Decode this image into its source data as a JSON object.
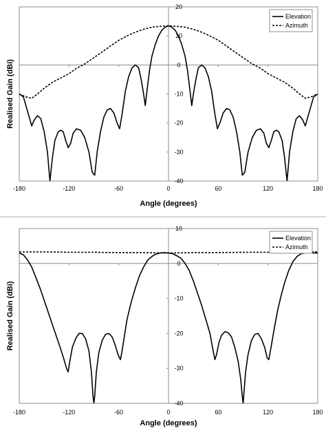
{
  "chart_data": [
    {
      "type": "line",
      "xlabel": "Angle (degrees)",
      "ylabel": "Realised Gain (dBi)",
      "xlim": [
        -180,
        180
      ],
      "ylim": [
        -40,
        20
      ],
      "x_ticks": [
        -180,
        -120,
        -60,
        0,
        60,
        120,
        180
      ],
      "y_ticks": [
        -40,
        -30,
        -20,
        -10,
        0,
        10,
        20
      ],
      "legend_position": "top-right",
      "grid": false,
      "series": [
        {
          "name": "Elevation",
          "style": "solid",
          "color": "#000000",
          "points": [
            [
              -180,
              -10
            ],
            [
              -175,
              -11
            ],
            [
              -170,
              -16
            ],
            [
              -165,
              -21
            ],
            [
              -162,
              -19
            ],
            [
              -158,
              -17.5
            ],
            [
              -154,
              -18.5
            ],
            [
              -150,
              -23
            ],
            [
              -146,
              -30
            ],
            [
              -143,
              -40
            ],
            [
              -140,
              -32
            ],
            [
              -137,
              -26
            ],
            [
              -133,
              -23
            ],
            [
              -130,
              -22.5
            ],
            [
              -127,
              -23
            ],
            [
              -124,
              -26
            ],
            [
              -121,
              -28.5
            ],
            [
              -118,
              -27
            ],
            [
              -115,
              -23.5
            ],
            [
              -111,
              -22
            ],
            [
              -106,
              -22.5
            ],
            [
              -101,
              -25
            ],
            [
              -96,
              -30
            ],
            [
              -92,
              -37
            ],
            [
              -89,
              -38
            ],
            [
              -86,
              -30
            ],
            [
              -82,
              -23
            ],
            [
              -78,
              -18
            ],
            [
              -74,
              -15.5
            ],
            [
              -70,
              -15
            ],
            [
              -66,
              -16.5
            ],
            [
              -62,
              -20
            ],
            [
              -59,
              -22
            ],
            [
              -56,
              -17
            ],
            [
              -52,
              -9
            ],
            [
              -48,
              -4
            ],
            [
              -44,
              -1
            ],
            [
              -40,
              0
            ],
            [
              -36,
              -1
            ],
            [
              -33,
              -5
            ],
            [
              -30,
              -10
            ],
            [
              -28,
              -14
            ],
            [
              -26,
              -9
            ],
            [
              -23,
              -2
            ],
            [
              -20,
              3
            ],
            [
              -16,
              7
            ],
            [
              -12,
              10
            ],
            [
              -8,
              12
            ],
            [
              -4,
              13
            ],
            [
              0,
              13.5
            ],
            [
              4,
              13
            ],
            [
              8,
              12
            ],
            [
              12,
              10
            ],
            [
              16,
              7
            ],
            [
              20,
              3
            ],
            [
              23,
              -2
            ],
            [
              26,
              -9
            ],
            [
              28,
              -14
            ],
            [
              30,
              -10
            ],
            [
              33,
              -5
            ],
            [
              36,
              -1
            ],
            [
              40,
              0
            ],
            [
              44,
              -1
            ],
            [
              48,
              -4
            ],
            [
              52,
              -9
            ],
            [
              56,
              -17
            ],
            [
              59,
              -22
            ],
            [
              62,
              -20
            ],
            [
              66,
              -16.5
            ],
            [
              70,
              -15
            ],
            [
              74,
              -15.5
            ],
            [
              78,
              -18
            ],
            [
              82,
              -23
            ],
            [
              86,
              -30
            ],
            [
              89,
              -38
            ],
            [
              92,
              -37
            ],
            [
              96,
              -30
            ],
            [
              101,
              -25
            ],
            [
              106,
              -22.5
            ],
            [
              111,
              -22
            ],
            [
              115,
              -23.5
            ],
            [
              118,
              -27
            ],
            [
              121,
              -28.5
            ],
            [
              124,
              -26
            ],
            [
              127,
              -23
            ],
            [
              130,
              -22.5
            ],
            [
              133,
              -23
            ],
            [
              137,
              -26
            ],
            [
              140,
              -32
            ],
            [
              143,
              -40
            ],
            [
              146,
              -30
            ],
            [
              150,
              -23
            ],
            [
              154,
              -18.5
            ],
            [
              158,
              -17.5
            ],
            [
              162,
              -19
            ],
            [
              165,
              -21
            ],
            [
              170,
              -16
            ],
            [
              175,
              -11
            ],
            [
              180,
              -10
            ]
          ]
        },
        {
          "name": "Azimuth",
          "style": "dashed",
          "color": "#000000",
          "points": [
            [
              -180,
              -10
            ],
            [
              -172,
              -11
            ],
            [
              -165,
              -11.5
            ],
            [
              -158,
              -10
            ],
            [
              -150,
              -8
            ],
            [
              -140,
              -6
            ],
            [
              -130,
              -4.5
            ],
            [
              -120,
              -3
            ],
            [
              -110,
              -1
            ],
            [
              -100,
              0.5
            ],
            [
              -90,
              2.5
            ],
            [
              -80,
              4.5
            ],
            [
              -70,
              6.5
            ],
            [
              -60,
              8.5
            ],
            [
              -50,
              10
            ],
            [
              -40,
              11.3
            ],
            [
              -30,
              12.3
            ],
            [
              -20,
              13
            ],
            [
              -10,
              13.3
            ],
            [
              0,
              13.5
            ],
            [
              10,
              13.3
            ],
            [
              20,
              13
            ],
            [
              30,
              12.3
            ],
            [
              40,
              11.3
            ],
            [
              50,
              10
            ],
            [
              60,
              8.5
            ],
            [
              70,
              6.5
            ],
            [
              80,
              4.5
            ],
            [
              90,
              2.5
            ],
            [
              100,
              0.5
            ],
            [
              110,
              -1
            ],
            [
              120,
              -3
            ],
            [
              130,
              -4.5
            ],
            [
              140,
              -6
            ],
            [
              150,
              -8
            ],
            [
              158,
              -10
            ],
            [
              165,
              -11.5
            ],
            [
              172,
              -11
            ],
            [
              180,
              -10
            ]
          ]
        }
      ]
    },
    {
      "type": "line",
      "xlabel": "Angle (degrees)",
      "ylabel": "Realised Gain (dBi)",
      "xlim": [
        -180,
        180
      ],
      "ylim": [
        -40,
        10
      ],
      "x_ticks": [
        -180,
        -120,
        -60,
        0,
        60,
        120,
        180
      ],
      "y_ticks": [
        -40,
        -30,
        -20,
        -10,
        0,
        10
      ],
      "legend_position": "top-right",
      "grid": false,
      "series": [
        {
          "name": "Elevation",
          "style": "solid",
          "color": "#000000",
          "points": [
            [
              -180,
              3
            ],
            [
              -175,
              2.5
            ],
            [
              -170,
              1
            ],
            [
              -165,
              -1
            ],
            [
              -160,
              -4
            ],
            [
              -155,
              -7
            ],
            [
              -150,
              -10.5
            ],
            [
              -145,
              -14
            ],
            [
              -140,
              -17.5
            ],
            [
              -135,
              -21
            ],
            [
              -130,
              -24.5
            ],
            [
              -126,
              -27.5
            ],
            [
              -123,
              -30
            ],
            [
              -121,
              -31
            ],
            [
              -119,
              -28
            ],
            [
              -116,
              -24
            ],
            [
              -112,
              -21.5
            ],
            [
              -108,
              -20
            ],
            [
              -104,
              -20
            ],
            [
              -100,
              -21.5
            ],
            [
              -96,
              -25
            ],
            [
              -93,
              -31
            ],
            [
              -91,
              -38
            ],
            [
              -90,
              -40
            ],
            [
              -89,
              -38
            ],
            [
              -87,
              -31
            ],
            [
              -84,
              -25.5
            ],
            [
              -80,
              -22
            ],
            [
              -76,
              -20.3
            ],
            [
              -72,
              -20
            ],
            [
              -68,
              -21
            ],
            [
              -64,
              -23.5
            ],
            [
              -61,
              -26
            ],
            [
              -58,
              -27.5
            ],
            [
              -56,
              -25
            ],
            [
              -53,
              -20.5
            ],
            [
              -50,
              -16
            ],
            [
              -45,
              -11
            ],
            [
              -40,
              -7
            ],
            [
              -35,
              -3.5
            ],
            [
              -30,
              -1
            ],
            [
              -25,
              1
            ],
            [
              -20,
              2
            ],
            [
              -15,
              2.7
            ],
            [
              -10,
              3
            ],
            [
              -5,
              3.1
            ],
            [
              0,
              3
            ],
            [
              5,
              2.8
            ],
            [
              10,
              2.2
            ],
            [
              15,
              1.5
            ],
            [
              20,
              0
            ],
            [
              25,
              -2
            ],
            [
              30,
              -5
            ],
            [
              35,
              -8.5
            ],
            [
              40,
              -12
            ],
            [
              45,
              -16
            ],
            [
              50,
              -20
            ],
            [
              53,
              -24
            ],
            [
              56,
              -27.5
            ],
            [
              58,
              -26
            ],
            [
              61,
              -22.5
            ],
            [
              64,
              -20.5
            ],
            [
              68,
              -19.5
            ],
            [
              72,
              -19.8
            ],
            [
              76,
              -21
            ],
            [
              80,
              -24
            ],
            [
              84,
              -28
            ],
            [
              87,
              -33
            ],
            [
              89,
              -38
            ],
            [
              90,
              -40
            ],
            [
              91,
              -37
            ],
            [
              93,
              -31
            ],
            [
              96,
              -26
            ],
            [
              100,
              -22
            ],
            [
              104,
              -20.3
            ],
            [
              108,
              -20
            ],
            [
              112,
              -21.5
            ],
            [
              116,
              -24
            ],
            [
              119,
              -27
            ],
            [
              121,
              -27.5
            ],
            [
              124,
              -23.5
            ],
            [
              128,
              -18
            ],
            [
              132,
              -13
            ],
            [
              136,
              -9
            ],
            [
              140,
              -5.5
            ],
            [
              145,
              -2
            ],
            [
              150,
              0.5
            ],
            [
              155,
              2
            ],
            [
              160,
              2.8
            ],
            [
              165,
              3
            ],
            [
              170,
              3.1
            ],
            [
              175,
              3
            ],
            [
              180,
              3
            ]
          ]
        },
        {
          "name": "Azimuth",
          "style": "dashed",
          "color": "#000000",
          "points": [
            [
              -180,
              3.3
            ],
            [
              -150,
              3.3
            ],
            [
              -120,
              3.2
            ],
            [
              -90,
              3.2
            ],
            [
              -60,
              3.1
            ],
            [
              -30,
              3.1
            ],
            [
              0,
              3
            ],
            [
              30,
              3.1
            ],
            [
              60,
              3.1
            ],
            [
              90,
              3.2
            ],
            [
              120,
              3.2
            ],
            [
              150,
              3.3
            ],
            [
              180,
              3.3
            ]
          ]
        }
      ]
    }
  ]
}
